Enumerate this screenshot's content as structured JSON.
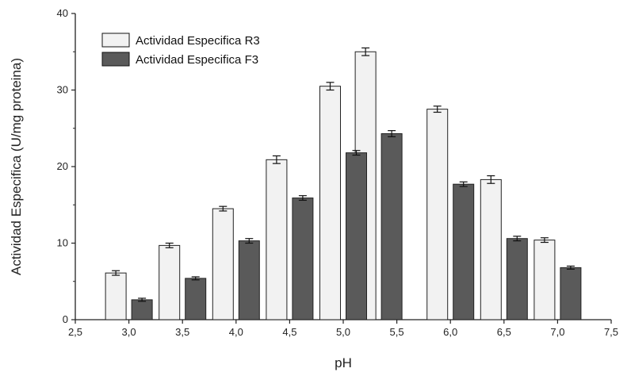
{
  "chart_data": {
    "type": "bar",
    "xlabel": "pH",
    "ylabel": "Actividad Especifica (U/mg proteina)",
    "xlim": [
      2.5,
      7.5
    ],
    "ylim": [
      0,
      40
    ],
    "xticks": [
      "2,5",
      "3,0",
      "3,5",
      "4,0",
      "4,5",
      "5,0",
      "5,5",
      "6,0",
      "6,5",
      "7,0",
      "7,5"
    ],
    "yticks": [
      "0",
      "10",
      "20",
      "30",
      "40"
    ],
    "grid": false,
    "legend_position": "top-left",
    "series": [
      {
        "name": "Actividad Especifica R3",
        "color": "#f2f2f2",
        "x": [
          3.0,
          3.5,
          4.0,
          4.5,
          5.0,
          5.33,
          6.0,
          6.5,
          7.0
        ],
        "values": [
          6.1,
          9.7,
          14.5,
          20.9,
          30.5,
          35.0,
          27.5,
          18.3,
          10.4
        ],
        "errors": [
          0.3,
          0.3,
          0.3,
          0.5,
          0.5,
          0.5,
          0.4,
          0.5,
          0.3
        ]
      },
      {
        "name": "Actividad Especifica F3",
        "color": "#5a5a5a",
        "x": [
          3.0,
          3.5,
          4.0,
          4.5,
          5.0,
          5.33,
          6.0,
          6.5,
          7.0
        ],
        "values": [
          2.6,
          5.4,
          10.3,
          15.9,
          21.8,
          24.3,
          17.7,
          10.6,
          6.8
        ],
        "errors": [
          0.2,
          0.2,
          0.3,
          0.3,
          0.3,
          0.4,
          0.3,
          0.3,
          0.2
        ]
      }
    ]
  }
}
